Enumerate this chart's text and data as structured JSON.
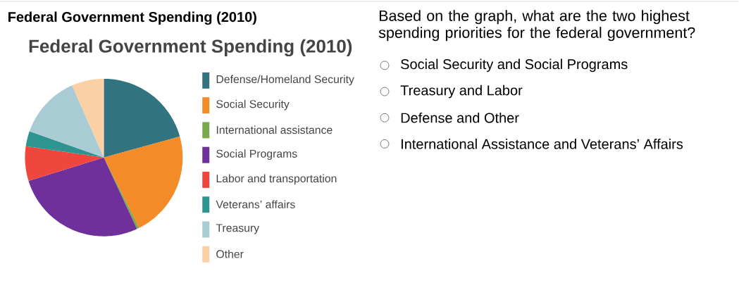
{
  "chart_data": {
    "type": "pie",
    "title": "Federal Government Spending (2010)",
    "categories": [
      "Defense/Homeland Security",
      "Social Security",
      "International assistance",
      "Social Programs",
      "Labor and transportation",
      "Veterans’ affairs",
      "Treasury",
      "Other"
    ],
    "values": [
      20.7,
      21.9,
      0.5,
      27.1,
      7.1,
      3.1,
      13.0,
      6.6
    ],
    "colors": [
      "#31737f",
      "#f48b29",
      "#79a94a",
      "#6f309b",
      "#ef473d",
      "#2e9490",
      "#a9cbd3",
      "#fbd0a4"
    ],
    "legend": "right",
    "annotations": [
      "Federal Government Spending (2010)",
      "Based on the graph, what are the two highest spending priorities for the federal government?",
      "Social Security and Social Programs",
      "Treasury and Labor",
      "Defense and Other",
      "International Assistance and Veterans’ Affairs"
    ]
  }
}
